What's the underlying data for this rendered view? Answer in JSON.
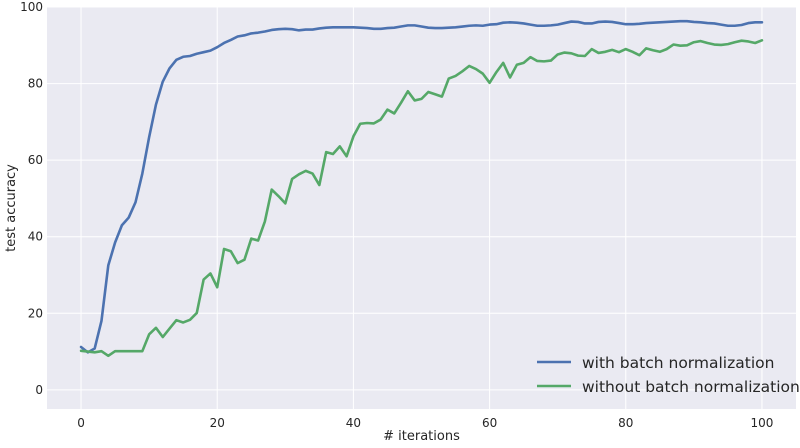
{
  "chart_data": {
    "type": "line",
    "xlabel": "# iterations",
    "ylabel": "test accuracy",
    "xlim": [
      -5,
      105
    ],
    "ylim": [
      -5,
      100
    ],
    "xticks": [
      0,
      20,
      40,
      60,
      80,
      100
    ],
    "yticks": [
      0,
      20,
      40,
      60,
      80,
      100
    ],
    "grid": true,
    "legend_position": "lower-right",
    "background_color": "#eaeaf2",
    "grid_color": "#ffffff",
    "series": [
      {
        "name": "with batch normalization",
        "color": "#4c72b0",
        "x": [
          0,
          1,
          2,
          3,
          4,
          5,
          6,
          7,
          8,
          9,
          10,
          11,
          12,
          13,
          14,
          15,
          16,
          17,
          18,
          19,
          20,
          21,
          22,
          23,
          24,
          25,
          26,
          27,
          28,
          29,
          30,
          31,
          32,
          33,
          34,
          35,
          36,
          37,
          38,
          39,
          40,
          41,
          42,
          43,
          44,
          45,
          46,
          47,
          48,
          49,
          50,
          51,
          52,
          53,
          54,
          55,
          56,
          57,
          58,
          59,
          60,
          61,
          62,
          63,
          64,
          65,
          66,
          67,
          68,
          69,
          70,
          71,
          72,
          73,
          74,
          75,
          76,
          77,
          78,
          79,
          80,
          81,
          82,
          83,
          84,
          85,
          86,
          87,
          88,
          89,
          90,
          91,
          92,
          93,
          94,
          95,
          96,
          97,
          98,
          99,
          100
        ],
        "values": [
          11.2,
          9.8,
          10.8,
          18.0,
          32.5,
          38.5,
          43.0,
          45.0,
          49.0,
          56.5,
          66.0,
          74.5,
          80.5,
          84.0,
          86.2,
          87.0,
          87.2,
          87.8,
          88.2,
          88.6,
          89.5,
          90.6,
          91.4,
          92.3,
          92.6,
          93.1,
          93.3,
          93.6,
          94.0,
          94.2,
          94.3,
          94.2,
          93.9,
          94.1,
          94.1,
          94.4,
          94.6,
          94.7,
          94.7,
          94.7,
          94.7,
          94.6,
          94.5,
          94.3,
          94.3,
          94.5,
          94.6,
          94.9,
          95.2,
          95.2,
          94.9,
          94.6,
          94.5,
          94.5,
          94.6,
          94.7,
          94.9,
          95.1,
          95.2,
          95.1,
          95.4,
          95.5,
          95.9,
          96.0,
          95.9,
          95.7,
          95.4,
          95.1,
          95.1,
          95.2,
          95.4,
          95.8,
          96.2,
          96.1,
          95.7,
          95.7,
          96.1,
          96.2,
          96.1,
          95.8,
          95.5,
          95.5,
          95.6,
          95.8,
          95.9,
          96.0,
          96.1,
          96.2,
          96.3,
          96.3,
          96.1,
          96.0,
          95.8,
          95.7,
          95.4,
          95.1,
          95.1,
          95.3,
          95.8,
          96.0,
          96.0
        ]
      },
      {
        "name": "without batch normalization",
        "color": "#55a868",
        "x": [
          0,
          1,
          2,
          3,
          4,
          5,
          6,
          7,
          8,
          9,
          10,
          11,
          12,
          13,
          14,
          15,
          16,
          17,
          18,
          19,
          20,
          21,
          22,
          23,
          24,
          25,
          26,
          27,
          28,
          29,
          30,
          31,
          32,
          33,
          34,
          35,
          36,
          37,
          38,
          39,
          40,
          41,
          42,
          43,
          44,
          45,
          46,
          47,
          48,
          49,
          50,
          51,
          52,
          53,
          54,
          55,
          56,
          57,
          58,
          59,
          60,
          61,
          62,
          63,
          64,
          65,
          66,
          67,
          68,
          69,
          70,
          71,
          72,
          73,
          74,
          75,
          76,
          77,
          78,
          79,
          80,
          81,
          82,
          83,
          84,
          85,
          86,
          87,
          88,
          89,
          90,
          91,
          92,
          93,
          94,
          95,
          96,
          97,
          98,
          99,
          100
        ],
        "values": [
          10.2,
          10.0,
          9.8,
          10.1,
          8.9,
          10.1,
          10.1,
          10.1,
          10.1,
          10.1,
          14.5,
          16.2,
          13.8,
          16.0,
          18.2,
          17.6,
          18.3,
          20.1,
          28.8,
          30.4,
          26.8,
          36.8,
          36.2,
          33.1,
          34.0,
          39.5,
          39.0,
          44.0,
          52.3,
          50.6,
          48.7,
          55.1,
          56.3,
          57.2,
          56.5,
          53.5,
          62.1,
          61.6,
          63.6,
          61.0,
          66.2,
          69.5,
          69.7,
          69.6,
          70.6,
          73.2,
          72.2,
          75.0,
          78.0,
          75.6,
          76.0,
          77.8,
          77.2,
          76.6,
          81.3,
          82.0,
          83.2,
          84.6,
          83.8,
          82.6,
          80.2,
          83.0,
          85.4,
          81.6,
          84.9,
          85.4,
          86.9,
          85.9,
          85.8,
          86.0,
          87.6,
          88.1,
          87.9,
          87.3,
          87.2,
          89.0,
          88.0,
          88.3,
          88.8,
          88.2,
          89.0,
          88.3,
          87.4,
          89.2,
          88.7,
          88.3,
          89.0,
          90.2,
          89.9,
          90.0,
          90.8,
          91.1,
          90.6,
          90.2,
          90.1,
          90.3,
          90.8,
          91.2,
          91.0,
          90.6,
          91.3
        ]
      }
    ]
  }
}
